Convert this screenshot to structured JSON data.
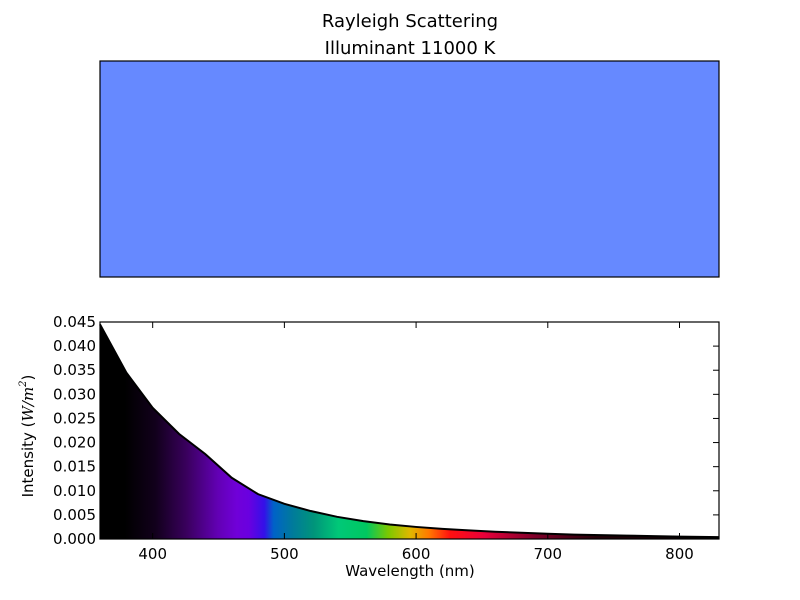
{
  "chart_data": [
    {
      "type": "heatmap",
      "title": "Rayleigh Scattering",
      "subtitle": "Illuminant 11000 K",
      "swatch_color": "#6689ff"
    },
    {
      "type": "area",
      "xlabel": "Wavelength (nm)",
      "ylabel_prefix": "Intensity (",
      "ylabel_unit_base": "W/m",
      "ylabel_unit_exp": "2",
      "ylabel_suffix": ")",
      "xlim": [
        360,
        830
      ],
      "ylim": [
        0,
        0.045
      ],
      "xticks": [
        400,
        500,
        600,
        700,
        800
      ],
      "xtick_labels": [
        "400",
        "500",
        "600",
        "700",
        "800"
      ],
      "yticks": [
        0,
        0.005,
        0.01,
        0.015,
        0.02,
        0.025,
        0.03,
        0.035,
        0.04,
        0.045
      ],
      "ytick_labels": [
        "0.000",
        "0.005",
        "0.010",
        "0.015",
        "0.020",
        "0.025",
        "0.030",
        "0.035",
        "0.040",
        "0.045"
      ],
      "grid": false,
      "series": [
        {
          "x": [
            360,
            380,
            400,
            420,
            440,
            460,
            480,
            500,
            520,
            540,
            560,
            580,
            600,
            620,
            640,
            660,
            680,
            700,
            720,
            740,
            760,
            780,
            800,
            830
          ],
          "y": [
            0.0445,
            0.0345,
            0.0272,
            0.0218,
            0.0176,
            0.0127,
            0.0093,
            0.0073,
            0.0058,
            0.0046,
            0.0037,
            0.003,
            0.0025,
            0.0021,
            0.0018,
            0.0015,
            0.0013,
            0.0011,
            0.0009,
            0.0008,
            0.0007,
            0.0006,
            0.0005,
            0.0004
          ]
        }
      ]
    }
  ]
}
